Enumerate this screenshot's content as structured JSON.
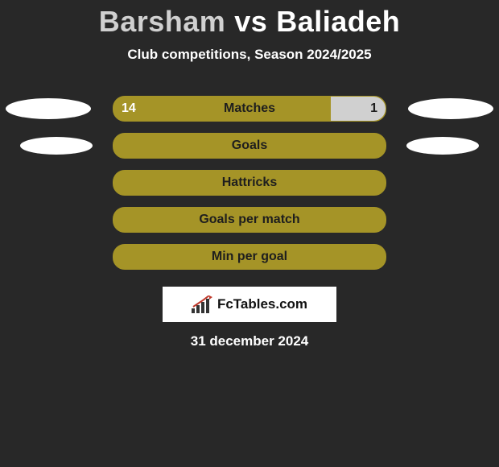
{
  "header": {
    "player1": "Barsham",
    "vs": "vs",
    "player2": "Baliadeh",
    "player1_color": "#d0d0d0",
    "player2_color": "#ffffff",
    "title_fontsize": 36
  },
  "subtitle": "Club competitions, Season 2024/2025",
  "theme": {
    "background": "#282828",
    "bar_fill": "#a59427",
    "bar_alt_fill": "#d0d0d0",
    "bar_border": "#a59427",
    "label_fontsize": 16,
    "ellipse_color": "#ffffff"
  },
  "rows": [
    {
      "label": "Matches",
      "left_value": "14",
      "right_value": "1",
      "left_share": 0.8,
      "right_share": 0.2,
      "ellipse_left": true,
      "ellipse_right": true,
      "ellipse_size": "big"
    },
    {
      "label": "Goals",
      "left_value": "",
      "right_value": "",
      "left_share": 1.0,
      "right_share": 0.0,
      "ellipse_left": true,
      "ellipse_right": true,
      "ellipse_size": "small"
    },
    {
      "label": "Hattricks",
      "left_value": "",
      "right_value": "",
      "left_share": 1.0,
      "right_share": 0.0,
      "ellipse_left": false,
      "ellipse_right": false,
      "ellipse_size": "small"
    },
    {
      "label": "Goals per match",
      "left_value": "",
      "right_value": "",
      "left_share": 1.0,
      "right_share": 0.0,
      "ellipse_left": false,
      "ellipse_right": false,
      "ellipse_size": "small"
    },
    {
      "label": "Min per goal",
      "left_value": "",
      "right_value": "",
      "left_share": 1.0,
      "right_share": 0.0,
      "ellipse_left": false,
      "ellipse_right": false,
      "ellipse_size": "small"
    }
  ],
  "brand": {
    "text": "FcTables.com",
    "icon_bar_color": "#333333",
    "icon_accent_color": "#c0392b"
  },
  "date": "31 december 2024"
}
